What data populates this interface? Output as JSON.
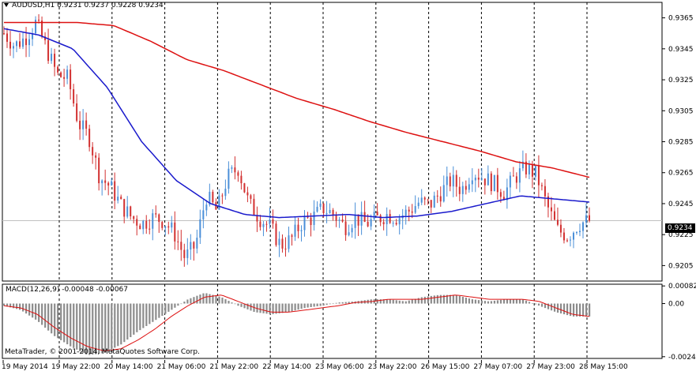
{
  "chart_header": {
    "symbol": "AUDUSD,H1",
    "o": "0.9231",
    "h": "0.9237",
    "l": "0.9228",
    "c": "0.9234"
  },
  "current_price": "0.9234",
  "macd_label": "MACD(12,26,9) -0.00048 -0.00067",
  "copyright": "MetaTrader, © 2001-2014, MetaQuotes Software Corp.",
  "colors": {
    "bull": "#4a8fd8",
    "bear": "#d23030",
    "ma_red": "#dd1111",
    "ma_blue": "#1a1acc",
    "macd_hist": "#8c8c8c",
    "signal": "#dd1111"
  },
  "chart_data": [
    {
      "type": "candlestick",
      "title": "AUDUSD,H1",
      "ylim": [
        0.9195,
        0.9375
      ],
      "y_ticks": [
        "0.9365",
        "0.9345",
        "0.9325",
        "0.9305",
        "0.9285",
        "0.9265",
        "0.9245",
        "0.9225",
        "0.9205"
      ],
      "x_labels": [
        "19 May 2014",
        "19 May 22:00",
        "20 May 14:00",
        "21 May 06:00",
        "21 May 22:00",
        "22 May 14:00",
        "23 May 06:00",
        "23 May 22:00",
        "26 May 15:00",
        "27 May 07:00",
        "27 May 23:00",
        "28 May 15:00"
      ],
      "close_path": [
        0.9355,
        0.9347,
        0.9352,
        0.9362,
        0.9345,
        0.9328,
        0.9326,
        0.9297,
        0.9288,
        0.9262,
        0.9256,
        0.9244,
        0.9236,
        0.9232,
        0.9236,
        0.9234,
        0.9226,
        0.921,
        0.9218,
        0.925,
        0.924,
        0.9262,
        0.9268,
        0.9245,
        0.9236,
        0.923,
        0.9218,
        0.9222,
        0.9233,
        0.9236,
        0.9242,
        0.9238,
        0.923,
        0.9236,
        0.9232,
        0.9235,
        0.9238,
        0.9236,
        0.924,
        0.9246,
        0.9244,
        0.9252,
        0.926,
        0.9254,
        0.9266,
        0.9262,
        0.9258,
        0.9252,
        0.9262,
        0.9268,
        0.9264,
        0.9244,
        0.9228,
        0.9224,
        0.9232,
        0.9234
      ],
      "series": [
        {
          "name": "",
          "style": "red MA",
          "values": [
            0.9362,
            0.9362,
            0.9362,
            0.936,
            0.935,
            0.9338,
            0.9331,
            0.9322,
            0.9313,
            0.9306,
            0.9298,
            0.9291,
            0.9285,
            0.9279,
            0.9272,
            0.9268,
            0.9262
          ]
        },
        {
          "name": "",
          "style": "blue MA",
          "values": [
            0.9358,
            0.9354,
            0.9345,
            0.932,
            0.9285,
            0.926,
            0.9245,
            0.9238,
            0.9236,
            0.9237,
            0.9238,
            0.9236,
            0.9237,
            0.924,
            0.9245,
            0.925,
            0.9248,
            0.9246
          ]
        }
      ]
    },
    {
      "type": "histogram",
      "title": "MACD(12,26,9)",
      "ylim": [
        -0.00255,
        0.0009
      ],
      "y_ticks": [
        "0.00082",
        "0.00",
        "-0.00247"
      ],
      "hist_path": [
        -0.0001,
        -0.0003,
        -0.0008,
        -0.0015,
        -0.002,
        -0.0024,
        -0.0023,
        -0.0019,
        -0.0013,
        -0.0008,
        -0.0003,
        0.0002,
        0.0005,
        0.0003,
        -0.0001,
        -0.0004,
        -0.0005,
        -0.0004,
        -0.0002,
        -0.0001,
        5e-05,
        0.0001,
        0.0002,
        0.0002,
        0.0001,
        0.0003,
        0.0004,
        0.0004,
        0.0002,
        0.0001,
        0.0002,
        0.0002,
        -0.0001,
        -0.0004,
        -0.0006,
        -0.0006
      ],
      "signal_path": [
        -0.0001,
        -0.0002,
        -0.0005,
        -0.0011,
        -0.0016,
        -0.002,
        -0.0022,
        -0.0021,
        -0.0017,
        -0.0012,
        -0.0006,
        -0.0001,
        0.0003,
        0.0004,
        0.0001,
        -0.0002,
        -0.0004,
        -0.0004,
        -0.0003,
        -0.0002,
        -0.0001,
        5e-05,
        0.0001,
        0.0002,
        0.0002,
        0.0002,
        0.0003,
        0.0004,
        0.0003,
        0.0002,
        0.0002,
        0.0002,
        0.0001,
        -0.0002,
        -0.0005,
        -0.0006
      ]
    }
  ]
}
